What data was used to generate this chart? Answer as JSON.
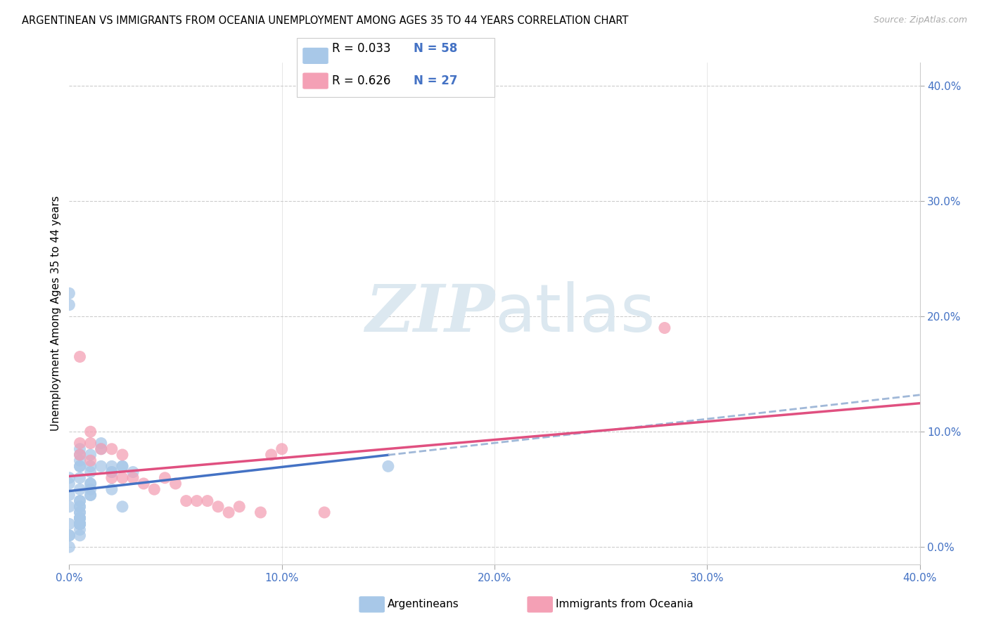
{
  "title": "ARGENTINEAN VS IMMIGRANTS FROM OCEANIA UNEMPLOYMENT AMONG AGES 35 TO 44 YEARS CORRELATION CHART",
  "source": "Source: ZipAtlas.com",
  "ylabel": "Unemployment Among Ages 35 to 44 years",
  "right_ytick_vals": [
    0.0,
    0.1,
    0.2,
    0.3,
    0.4
  ],
  "xtick_vals": [
    0.0,
    0.1,
    0.2,
    0.3,
    0.4
  ],
  "xmin": 0.0,
  "xmax": 0.4,
  "ymin": -0.015,
  "ymax": 0.42,
  "legend_label1": "Argentineans",
  "legend_label2": "Immigrants from Oceania",
  "R1": "0.033",
  "N1": "58",
  "R2": "0.626",
  "N2": "27",
  "color_blue": "#a8c8e8",
  "color_pink": "#f4a0b5",
  "color_blue_line": "#4472c4",
  "color_pink_line": "#e05080",
  "color_blue_dashed": "#a0b8d8",
  "watermark_color": "#dce8f0",
  "arg_x": [
    0.0,
    0.0,
    0.0,
    0.0,
    0.0,
    0.0,
    0.0,
    0.0,
    0.005,
    0.005,
    0.005,
    0.005,
    0.005,
    0.005,
    0.005,
    0.005,
    0.005,
    0.005,
    0.005,
    0.005,
    0.005,
    0.005,
    0.005,
    0.005,
    0.01,
    0.01,
    0.01,
    0.01,
    0.01,
    0.01,
    0.015,
    0.015,
    0.015,
    0.02,
    0.02,
    0.02,
    0.025,
    0.025,
    0.03,
    0.15,
    0.0,
    0.0,
    0.005,
    0.005,
    0.005,
    0.005,
    0.005,
    0.005,
    0.005,
    0.005,
    0.005,
    0.005,
    0.005,
    0.005,
    0.01,
    0.01,
    0.02,
    0.025
  ],
  "arg_y": [
    0.035,
    0.01,
    0.02,
    0.01,
    0.0,
    0.06,
    0.055,
    0.045,
    0.06,
    0.05,
    0.04,
    0.07,
    0.04,
    0.03,
    0.02,
    0.025,
    0.02,
    0.015,
    0.075,
    0.08,
    0.085,
    0.07,
    0.035,
    0.035,
    0.08,
    0.07,
    0.065,
    0.055,
    0.05,
    0.045,
    0.09,
    0.085,
    0.07,
    0.07,
    0.065,
    0.05,
    0.07,
    0.035,
    0.065,
    0.07,
    0.21,
    0.22,
    0.01,
    0.02,
    0.025,
    0.02,
    0.02,
    0.02,
    0.02,
    0.025,
    0.02,
    0.02,
    0.025,
    0.03,
    0.055,
    0.045,
    0.065,
    0.07
  ],
  "oce_x": [
    0.005,
    0.005,
    0.005,
    0.01,
    0.01,
    0.01,
    0.015,
    0.02,
    0.02,
    0.025,
    0.025,
    0.03,
    0.035,
    0.04,
    0.045,
    0.05,
    0.055,
    0.06,
    0.065,
    0.07,
    0.075,
    0.08,
    0.09,
    0.095,
    0.1,
    0.12,
    0.28
  ],
  "oce_y": [
    0.09,
    0.08,
    0.165,
    0.1,
    0.09,
    0.075,
    0.085,
    0.085,
    0.06,
    0.06,
    0.08,
    0.06,
    0.055,
    0.05,
    0.06,
    0.055,
    0.04,
    0.04,
    0.04,
    0.035,
    0.03,
    0.035,
    0.03,
    0.08,
    0.085,
    0.03,
    0.19
  ]
}
